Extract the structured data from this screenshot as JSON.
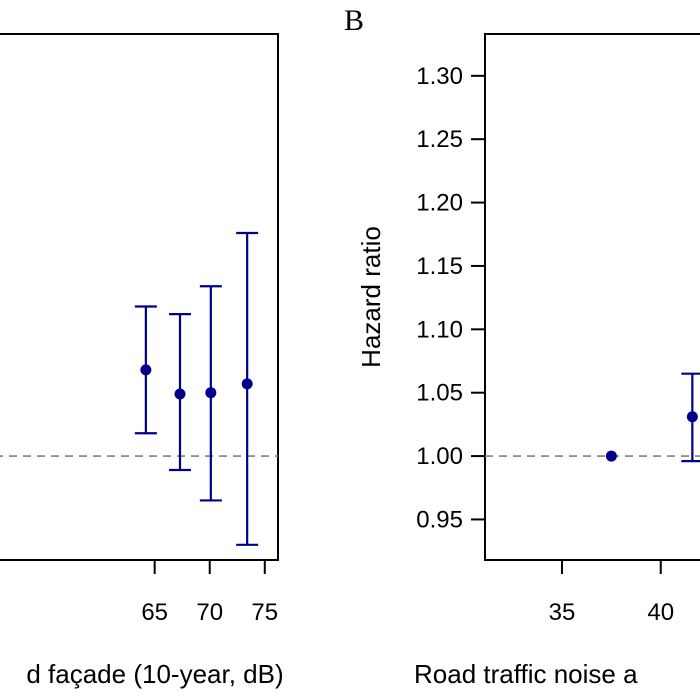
{
  "chart_data": [
    {
      "panel": "",
      "type": "scatter",
      "xlabel": "d façade (10-year, dB)",
      "ylabel": "",
      "x_ticks": [
        65,
        70,
        75
      ],
      "y_ticks": [],
      "ylim": [
        0.918,
        1.333
      ],
      "xlim": [
        50.5,
        76.2
      ],
      "reference_line": 1.0,
      "points": [
        {
          "x": 64.2,
          "y": 1.068,
          "lower": 1.018,
          "upper": 1.118
        },
        {
          "x": 67.3,
          "y": 1.049,
          "lower": 0.989,
          "upper": 1.112
        },
        {
          "x": 70.1,
          "y": 1.05,
          "lower": 0.965,
          "upper": 1.134
        },
        {
          "x": 73.4,
          "y": 1.057,
          "lower": 0.93,
          "upper": 1.176
        }
      ]
    },
    {
      "panel": "B",
      "type": "scatter",
      "xlabel": "Road traffic noise a",
      "ylabel": "Hazard ratio",
      "x_ticks": [
        35,
        40
      ],
      "y_ticks": [
        0.95,
        1.0,
        1.05,
        1.1,
        1.15,
        1.2,
        1.25,
        1.3
      ],
      "y_tick_labels": [
        "0.95",
        "1.00",
        "1.05",
        "1.10",
        "1.15",
        "1.20",
        "1.25",
        "1.30"
      ],
      "ylim": [
        0.918,
        1.333
      ],
      "xlim": [
        31.1,
        43.0
      ],
      "reference_line": 1.0,
      "points": [
        {
          "x": 37.5,
          "y": 1.0
        },
        {
          "x": 41.6,
          "y": 1.031,
          "lower": 0.996,
          "upper": 1.065
        }
      ]
    }
  ],
  "colors": {
    "points": "#00008b",
    "axes": "#000000",
    "reference": "#808080"
  }
}
